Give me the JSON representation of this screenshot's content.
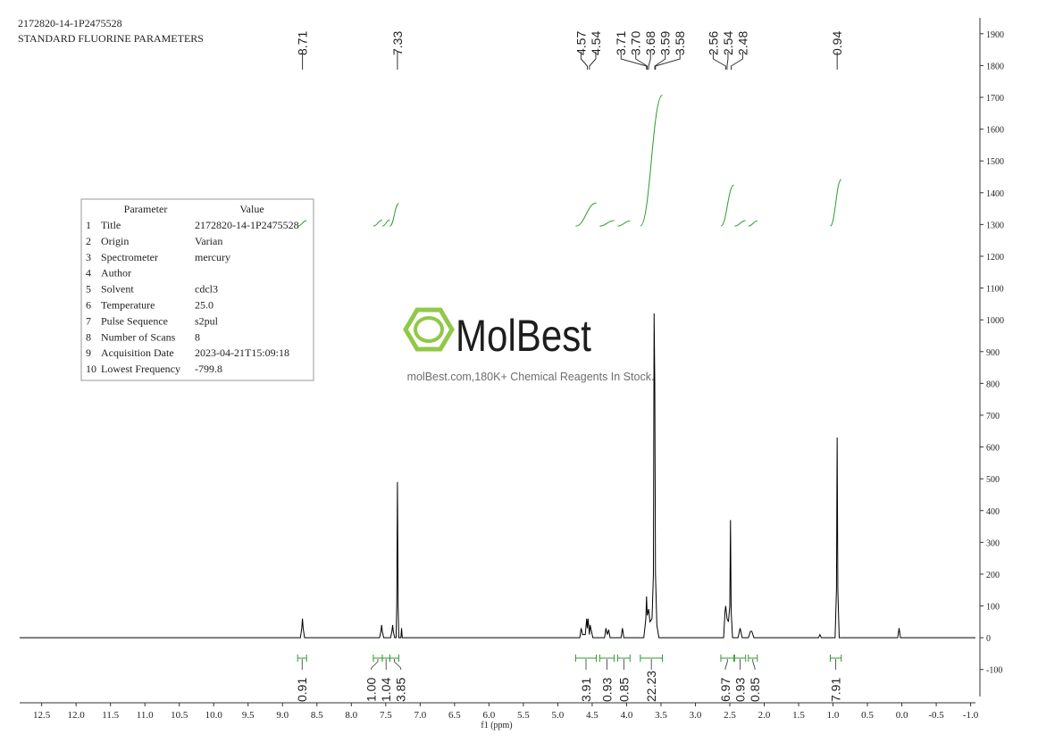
{
  "chart_data": {
    "type": "line",
    "title": "2172820-14-1P2475528",
    "subtitle": "STANDARD FLUORINE PARAMETERS",
    "x_label": "f1 (ppm)",
    "color": "#000000",
    "x": [
      12.82,
      8.74,
      8.72,
      8.71,
      8.7,
      8.68,
      7.59,
      7.57,
      7.56,
      7.55,
      7.53,
      7.43,
      7.41,
      7.4,
      7.39,
      7.37,
      7.35,
      7.34,
      7.33,
      7.32,
      7.31,
      7.28,
      7.27,
      7.26,
      4.68,
      4.66,
      4.64,
      4.6,
      4.58,
      4.57,
      4.56,
      4.54,
      4.53,
      4.51,
      4.49,
      4.32,
      4.3,
      4.28,
      4.26,
      4.24,
      4.08,
      4.06,
      4.04,
      3.75,
      3.72,
      3.71,
      3.7,
      3.68,
      3.66,
      3.63,
      3.61,
      3.6,
      3.59,
      3.58,
      3.56,
      3.53,
      2.59,
      2.57,
      2.56,
      2.54,
      2.52,
      2.5,
      2.49,
      2.48,
      2.46,
      2.38,
      2.35,
      2.32,
      2.23,
      2.2,
      2.18,
      2.15,
      1.21,
      1.19,
      1.17,
      0.97,
      0.95,
      0.94,
      0.93,
      0.91,
      0.06,
      0.04,
      0.02,
      -1.07
    ],
    "values": [
      0,
      0,
      30,
      60,
      30,
      0,
      0,
      20,
      40,
      20,
      0,
      0,
      20,
      40,
      20,
      0,
      0,
      100,
      490,
      100,
      0,
      0,
      30,
      0,
      0,
      30,
      10,
      10,
      60,
      30,
      60,
      10,
      40,
      20,
      0,
      0,
      30,
      10,
      25,
      0,
      0,
      30,
      0,
      0,
      60,
      130,
      70,
      90,
      50,
      60,
      200,
      1020,
      800,
      200,
      40,
      0,
      0,
      80,
      100,
      60,
      50,
      100,
      370,
      80,
      0,
      0,
      30,
      0,
      0,
      20,
      20,
      0,
      0,
      10,
      0,
      0,
      150,
      630,
      150,
      0,
      0,
      30,
      0,
      0
    ],
    "xlim": [
      12.82,
      -1.07
    ],
    "ylim": [
      -185,
      1950
    ],
    "xticks": [
      12.5,
      {
        "value": 12,
        "label": "12.0"
      },
      11.5,
      {
        "value": 11,
        "label": "11.0"
      },
      10.5,
      {
        "value": 10,
        "label": "10.0"
      },
      9.5,
      {
        "value": 9,
        "label": "9.0"
      },
      8.5,
      {
        "value": 8,
        "label": "8.0"
      },
      7.5,
      {
        "value": 7,
        "label": "7.0"
      },
      6.5,
      {
        "value": 6,
        "label": "6.0"
      },
      5.5,
      {
        "value": 5,
        "label": "5.0"
      },
      4.5,
      {
        "value": 4,
        "label": "4.0"
      },
      3.5,
      {
        "value": 3,
        "label": "3.0"
      },
      2.5,
      {
        "value": 2,
        "label": "2.0"
      },
      1.5,
      {
        "value": 1,
        "label": "1.0"
      },
      0.5,
      {
        "value": 0,
        "label": "0.0"
      },
      -0.5,
      {
        "value": -1,
        "label": "-1.0"
      }
    ],
    "yticks": [
      -100,
      0,
      100,
      200,
      300,
      400,
      500,
      600,
      700,
      800,
      900,
      1000,
      1100,
      1200,
      1300,
      1400,
      1500,
      1600,
      1700,
      1800,
      1900
    ],
    "peaks": {
      "values": [
        8.71,
        7.33,
        4.57,
        4.54,
        3.71,
        3.7,
        3.68,
        3.59,
        3.58,
        2.56,
        2.54,
        2.48,
        0.94
      ],
      "value_labels": [
        "8.71",
        "7.33",
        "4.57",
        "4.54",
        "3.71",
        "3.70",
        "3.68",
        "3.59",
        "3.58",
        "2.56",
        "2.54",
        "2.48",
        "0.94"
      ]
    },
    "integrals": {
      "color": "#2e9b2e",
      "ranges": [
        [
          8.78,
          8.65
        ],
        [
          7.68,
          7.55
        ],
        [
          7.55,
          7.44
        ],
        [
          7.44,
          7.31
        ],
        [
          4.74,
          4.44
        ],
        [
          4.39,
          4.18
        ],
        [
          4.13,
          3.95
        ],
        [
          3.8,
          3.48
        ],
        [
          2.63,
          2.44
        ],
        [
          2.43,
          2.27
        ],
        [
          2.23,
          2.1
        ],
        [
          1.04,
          0.88
        ]
      ],
      "values": [
        0.91,
        1.0,
        1.04,
        3.85,
        3.91,
        0.93,
        0.85,
        22.23,
        6.97,
        0.93,
        0.85,
        7.91
      ],
      "value_labels": [
        "0.91",
        "1.00",
        "1.04",
        "3.85",
        "3.91",
        "0.93",
        "0.85",
        "22.23",
        "6.97",
        "0.93",
        "0.85",
        "7.91"
      ]
    },
    "parameter_table": {
      "header": [
        "Parameter",
        "Value"
      ],
      "rows": [
        [
          "1",
          "Title",
          "2172820-14-1P2475528"
        ],
        [
          "2",
          "Origin",
          "Varian"
        ],
        [
          "3",
          "Spectrometer",
          "mercury"
        ],
        [
          "4",
          "Author",
          ""
        ],
        [
          "5",
          "Solvent",
          "cdcl3"
        ],
        [
          "6",
          "Temperature",
          "25.0"
        ],
        [
          "7",
          "Pulse Sequence",
          "s2pul"
        ],
        [
          "8",
          "Number of Scans",
          "8"
        ],
        [
          "9",
          "Acquisition Date",
          "2023-04-21T15:09:18"
        ],
        [
          "10",
          "Lowest Frequency",
          "-799.8"
        ]
      ]
    },
    "watermark": {
      "brand": "MolBest",
      "tagline": "molBest.com,180K+ Chemical Reagents In Stock."
    }
  }
}
